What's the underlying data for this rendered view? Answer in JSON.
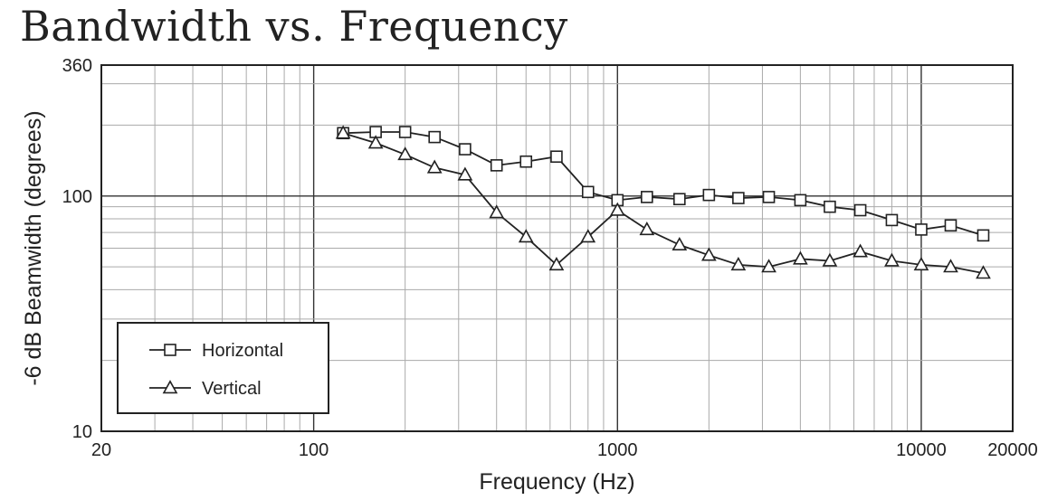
{
  "chart_data": {
    "type": "line",
    "title": "Bandwidth vs. Frequency",
    "xlabel": "Frequency (Hz)",
    "ylabel": "-6 dB Beamwidth (degrees)",
    "xscale": "log",
    "yscale": "log",
    "xlim": [
      20,
      20000
    ],
    "ylim": [
      10,
      360
    ],
    "x_ticks": [
      20,
      100,
      1000,
      10000,
      20000
    ],
    "x_tick_labels": [
      "20",
      "100",
      "1000",
      "10000",
      "20000"
    ],
    "y_ticks": [
      10,
      100,
      360
    ],
    "y_tick_labels": [
      "10",
      "100",
      "360"
    ],
    "grid": true,
    "legend_position": "bottom-left",
    "x": [
      125,
      160,
      200,
      250,
      315,
      400,
      500,
      630,
      800,
      1000,
      1250,
      1600,
      2000,
      2500,
      3150,
      4000,
      5000,
      6300,
      8000,
      10000,
      12500,
      16000
    ],
    "series": [
      {
        "name": "Horizontal",
        "marker": "square",
        "values": [
          185,
          187,
          187,
          178,
          158,
          135,
          140,
          147,
          104,
          96,
          99,
          97,
          101,
          98,
          99,
          96,
          90,
          87,
          79,
          72,
          75,
          68
        ]
      },
      {
        "name": "Vertical",
        "marker": "triangle",
        "values": [
          185,
          168,
          150,
          132,
          123,
          85,
          67,
          51,
          67,
          87,
          72,
          62,
          56,
          51,
          50,
          54,
          53,
          58,
          53,
          51,
          50,
          47
        ]
      }
    ]
  }
}
